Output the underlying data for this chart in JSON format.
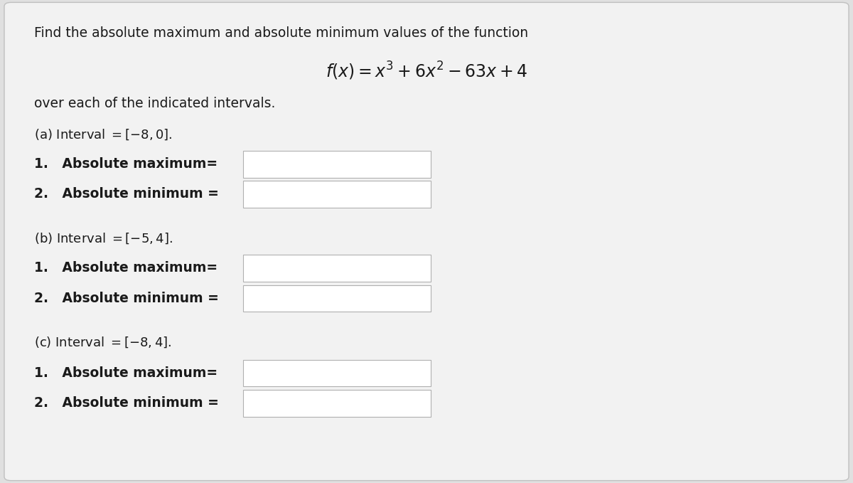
{
  "background_color": "#e0e0e0",
  "card_color": "#f2f2f2",
  "card_border_color": "#c0c0c0",
  "text_color": "#1a1a1a",
  "input_box_color": "#ffffff",
  "input_box_border": "#b0b0b0",
  "title_line1": "Find the absolute maximum and absolute minimum values of the function",
  "formula": "$f(x) = x^3 + 6x^2 - 63x + 4$",
  "subtitle": "over each of the indicated intervals.",
  "part_a_label": "(a) Interval $= [-8, 0]$.",
  "part_b_label": "(b) Interval $= [-5, 4]$.",
  "part_c_label": "(c) Interval $= [-8, 4]$.",
  "label1": "1.   Absolute maximum=",
  "label2": "2.   Absolute minimum =",
  "font_size_title": 13.5,
  "font_size_formula": 17,
  "font_size_part": 13,
  "font_size_label": 13.5
}
